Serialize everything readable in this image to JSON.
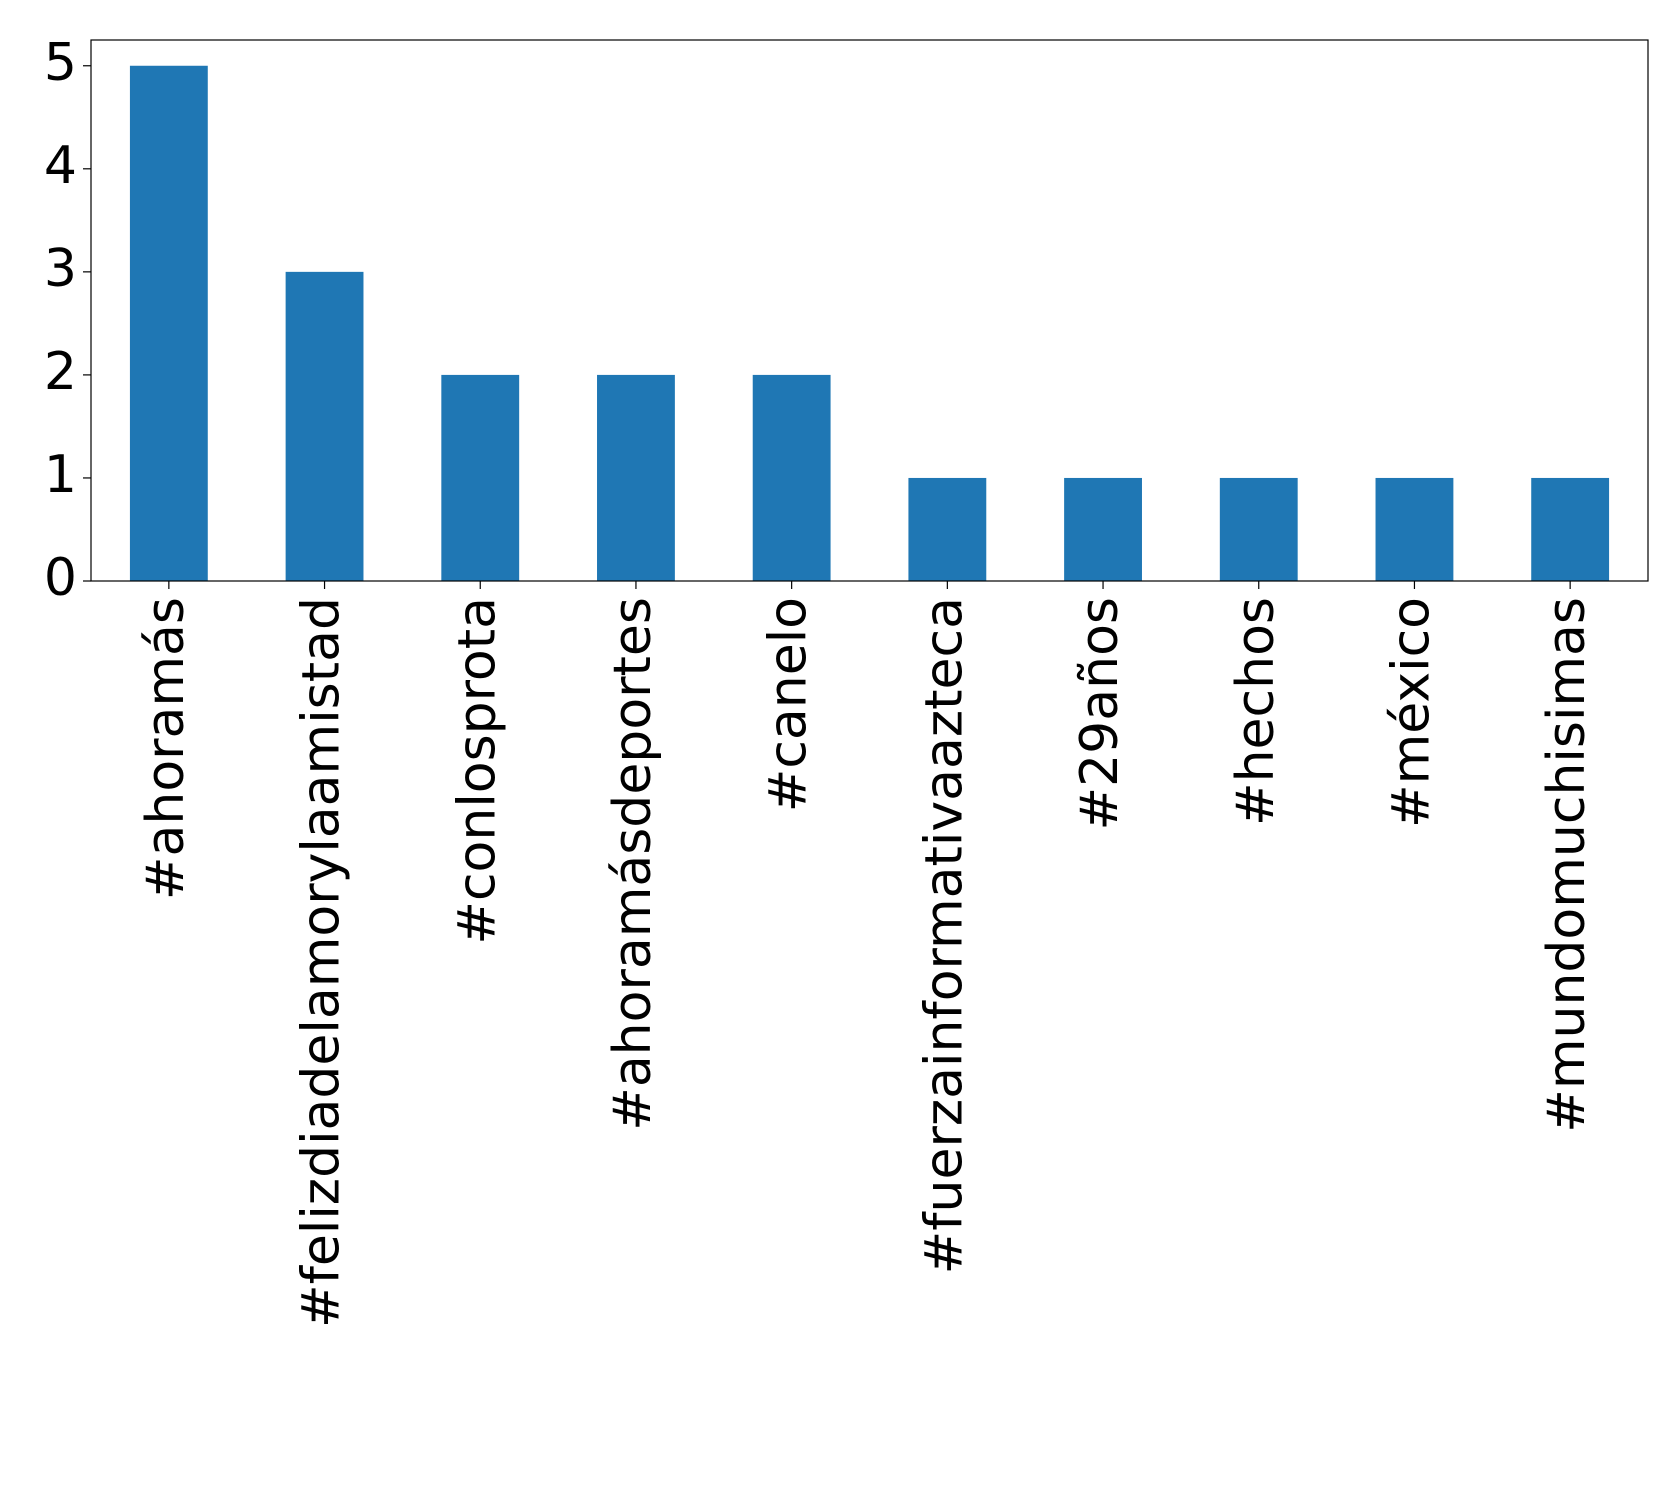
{
  "chart_data": {
    "type": "bar",
    "categories": [
      "#ahoramás",
      "#felizdiadelamorylaamistad",
      "#conlosprota",
      "#ahoramásdeportes",
      "#canelo",
      "#fuerzainformativaazteca",
      "#29años",
      "#hechos",
      "#méxico",
      "#mundomuchisimas"
    ],
    "values": [
      5,
      3,
      2,
      2,
      2,
      1,
      1,
      1,
      1,
      1
    ],
    "color": "#1f77b4",
    "ylim": [
      0,
      5.25
    ],
    "yticks": [
      0,
      1,
      2,
      3,
      4,
      5
    ],
    "grid": false
  }
}
